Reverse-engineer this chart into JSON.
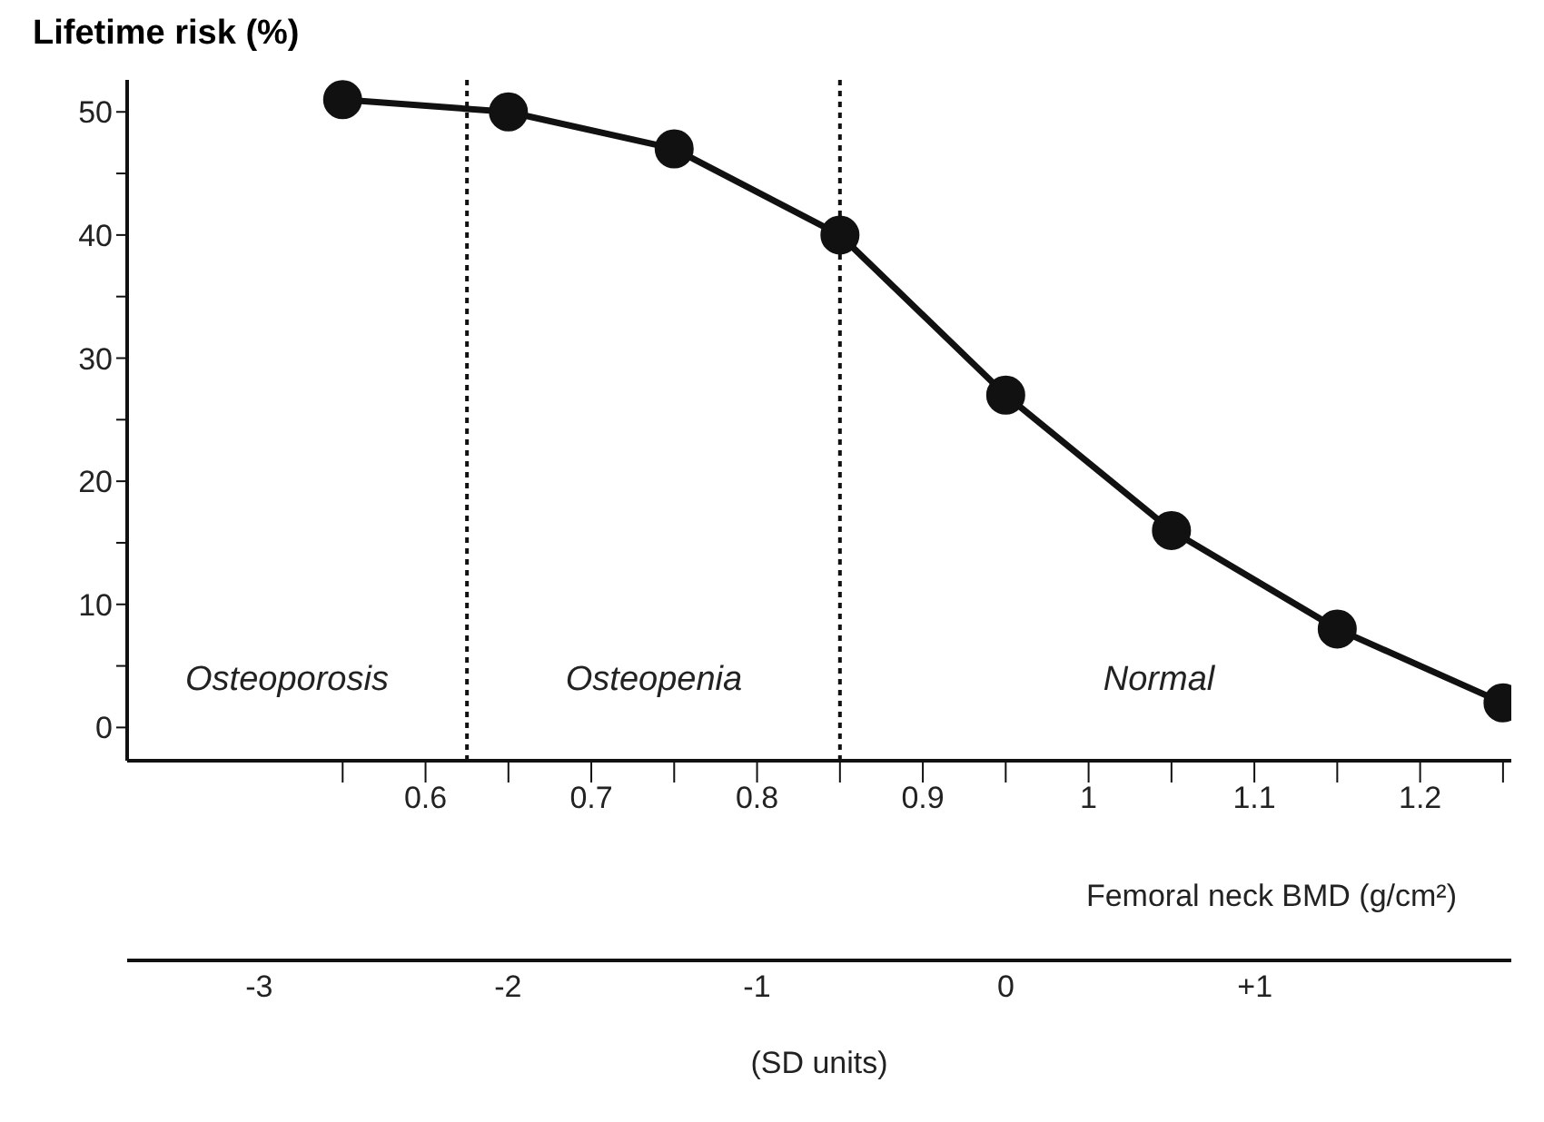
{
  "chart_data": {
    "type": "line",
    "title": "Lifetime risk (%)",
    "xlabel": "Femoral neck BMD (g/cm²)",
    "x2label": "(SD units)",
    "x": [
      0.55,
      0.65,
      0.75,
      0.85,
      0.95,
      1.05,
      1.15,
      1.25
    ],
    "series": [
      {
        "color": "#111111",
        "values": [
          51,
          50,
          47,
          40,
          27,
          16,
          8,
          2
        ]
      }
    ],
    "marker": "circle",
    "line_style": "solid",
    "grid": false,
    "legend": false,
    "xlim": [
      0.42,
      1.255
    ],
    "xticks": [
      {
        "value": 0.55,
        "label": null
      },
      0.6,
      {
        "value": 0.65,
        "label": null
      },
      0.7,
      {
        "value": 0.75,
        "label": null
      },
      0.8,
      {
        "value": 0.85,
        "label": null
      },
      0.9,
      {
        "value": 0.95,
        "label": null
      },
      1,
      {
        "value": 1.05,
        "label": null
      },
      1.1,
      {
        "value": 1.15,
        "label": null
      },
      1.2,
      {
        "value": 1.25,
        "label": null
      }
    ],
    "x2lim": [
      -3.53,
      2.03
    ],
    "x2ticks": [
      -3,
      -2,
      -1,
      0,
      {
        "value": 1,
        "label": "+1"
      }
    ],
    "ylim": [
      -2.7,
      52.6
    ],
    "yticks": [
      0,
      {
        "value": 5,
        "label": null
      },
      10,
      {
        "value": 15,
        "label": null
      },
      20,
      {
        "value": 25,
        "label": null
      },
      30,
      {
        "value": 35,
        "label": null
      },
      40,
      {
        "value": 45,
        "label": null
      },
      50
    ],
    "ref_lines": [
      {
        "axis": "x",
        "value": 0.625,
        "line_style": "dotted",
        "color": "#111111"
      },
      {
        "axis": "x",
        "value": 0.85,
        "line_style": "dotted",
        "color": "#111111"
      }
    ],
    "annotations": [
      "Osteoporosis",
      "Osteopenia",
      "Normal"
    ]
  }
}
